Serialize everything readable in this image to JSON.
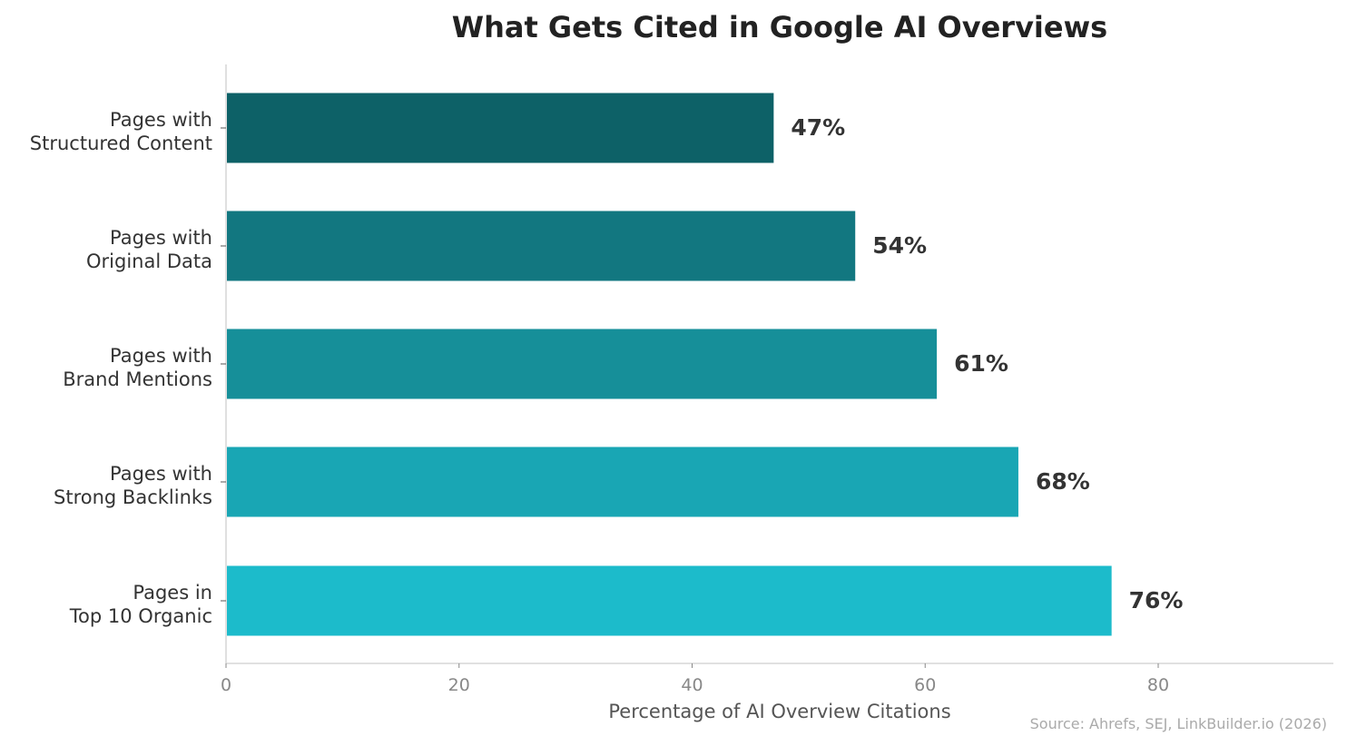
{
  "chart_data": {
    "type": "bar",
    "orientation": "horizontal",
    "title": "What Gets Cited in Google AI Overviews",
    "xlabel": "Percentage of AI Overview Citations",
    "ylabel": "",
    "xlim": [
      0,
      95
    ],
    "xticks": [
      0,
      20,
      40,
      60,
      80
    ],
    "grid": false,
    "categories": [
      [
        "Pages with",
        "Structured Content"
      ],
      [
        "Pages with",
        "Original Data"
      ],
      [
        "Pages with",
        "Brand Mentions"
      ],
      [
        "Pages with",
        "Strong Backlinks"
      ],
      [
        "Pages in",
        "Top 10 Organic"
      ]
    ],
    "values": [
      47,
      54,
      61,
      68,
      76
    ],
    "value_labels": [
      "47%",
      "54%",
      "61%",
      "68%",
      "76%"
    ],
    "colors": [
      "#0d6167",
      "#127780",
      "#168f99",
      "#19a6b4",
      "#1cbbcb"
    ],
    "source": "Source: Ahrefs, SEJ, LinkBuilder.io (2026)"
  }
}
